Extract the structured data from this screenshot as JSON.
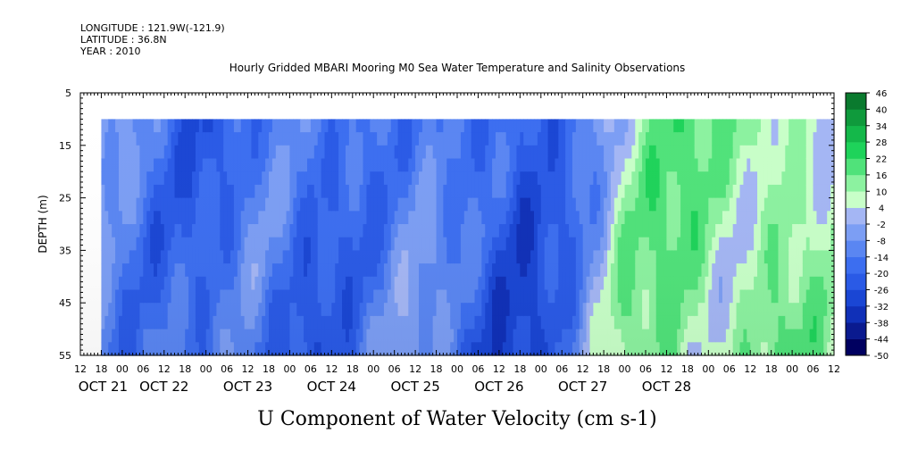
{
  "header": {
    "longitude": "LONGITUDE : 121.9W(-121.9)",
    "latitude": "LATITUDE : 36.8N",
    "year": "YEAR : 2010"
  },
  "chart_data": {
    "type": "heatmap",
    "title": "Hourly Gridded MBARI Mooring M0 Sea Water Temperature and Salinity Observations",
    "xlabel": "U Component of Water Velocity (cm s-1)",
    "ylabel": "DEPTH (m)",
    "ylim": [
      55,
      5
    ],
    "y_ticks": [
      5,
      15,
      25,
      35,
      45,
      55
    ],
    "x_hour_ticks": [
      "12",
      "18",
      "00",
      "06",
      "12",
      "18",
      "00",
      "06",
      "12",
      "18",
      "00",
      "06",
      "12",
      "18",
      "00",
      "06",
      "12",
      "18",
      "00",
      "06",
      "12",
      "18",
      "00",
      "06",
      "12",
      "18",
      "00",
      "06",
      "12",
      "18",
      "00",
      "06",
      "12",
      "18",
      "00",
      "06",
      "12"
    ],
    "x_day_labels": [
      "OCT 21",
      "OCT 22",
      "OCT 23",
      "OCT 24",
      "OCT 25",
      "OCT 26",
      "OCT 27",
      "OCT 28"
    ],
    "x_range_hours": {
      "start": "OCT 21 12:00",
      "end": "OCT 28 13:00"
    },
    "data_extent": {
      "time_start": "OCT 21 18:00",
      "time_end": "OCT 28 13:00",
      "depth_top": 10,
      "depth_bottom": 55
    },
    "colorbar": {
      "levels": [
        -50,
        -44,
        -38,
        -32,
        -26,
        -20,
        -14,
        -8,
        -2,
        4,
        10,
        16,
        22,
        28,
        34,
        40,
        46
      ],
      "labels": [
        "46",
        "40",
        "34",
        "28",
        "22",
        "16",
        "10",
        "4",
        "-2",
        "-8",
        "-14",
        "-20",
        "-26",
        "-32",
        "-38",
        "-44",
        "-50"
      ]
    },
    "time_series": [
      {
        "hour": 0,
        "u": -8
      },
      {
        "hour": 12,
        "u": -14
      },
      {
        "hour": 24,
        "u": -20
      },
      {
        "hour": 36,
        "u": -14
      },
      {
        "hour": 48,
        "u": -20
      },
      {
        "hour": 60,
        "u": -14
      },
      {
        "hour": 72,
        "u": -8
      },
      {
        "hour": 84,
        "u": -20
      },
      {
        "hour": 96,
        "u": -26
      },
      {
        "hour": 108,
        "u": -14
      },
      {
        "hour": 120,
        "u": 10
      },
      {
        "hour": 132,
        "u": 16
      },
      {
        "hour": 144,
        "u": 10
      },
      {
        "hour": 156,
        "u": 16
      },
      {
        "hour": 168,
        "u": 4
      }
    ],
    "grid": false
  }
}
